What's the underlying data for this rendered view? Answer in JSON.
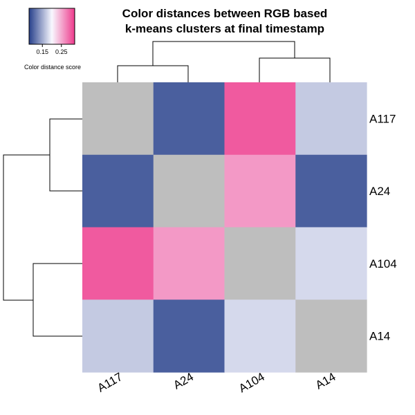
{
  "chart_data": {
    "type": "heatmap",
    "title": [
      "Color distances between RGB based",
      "k-means clusters at final timestamp"
    ],
    "rows": [
      "A117",
      "A24",
      "A104",
      "A14"
    ],
    "columns": [
      "A117",
      "A24",
      "A104",
      "A14"
    ],
    "values": [
      [
        null,
        0.1,
        0.3,
        0.17
      ],
      [
        0.1,
        null,
        0.26,
        0.1
      ],
      [
        0.3,
        0.26,
        null,
        0.18
      ],
      [
        0.17,
        0.1,
        0.18,
        null
      ]
    ],
    "diagonal_color": "#bebebe",
    "color_scale": {
      "stops": [
        {
          "value": 0.08,
          "color": "#27408b"
        },
        {
          "value": 0.2,
          "color": "#f8f8ff"
        },
        {
          "value": 0.32,
          "color": "#ee3a8c"
        }
      ],
      "legend_ticks": [
        0.15,
        0.25
      ],
      "legend_label": "Color distance score"
    },
    "row_dendrogram": {
      "merges": [
        [
          "A117",
          "A24"
        ],
        [
          "A104",
          "A14"
        ]
      ]
    },
    "column_dendrogram": {
      "merges": [
        [
          "A117",
          "A24"
        ],
        [
          "A104",
          "A14"
        ]
      ]
    }
  }
}
